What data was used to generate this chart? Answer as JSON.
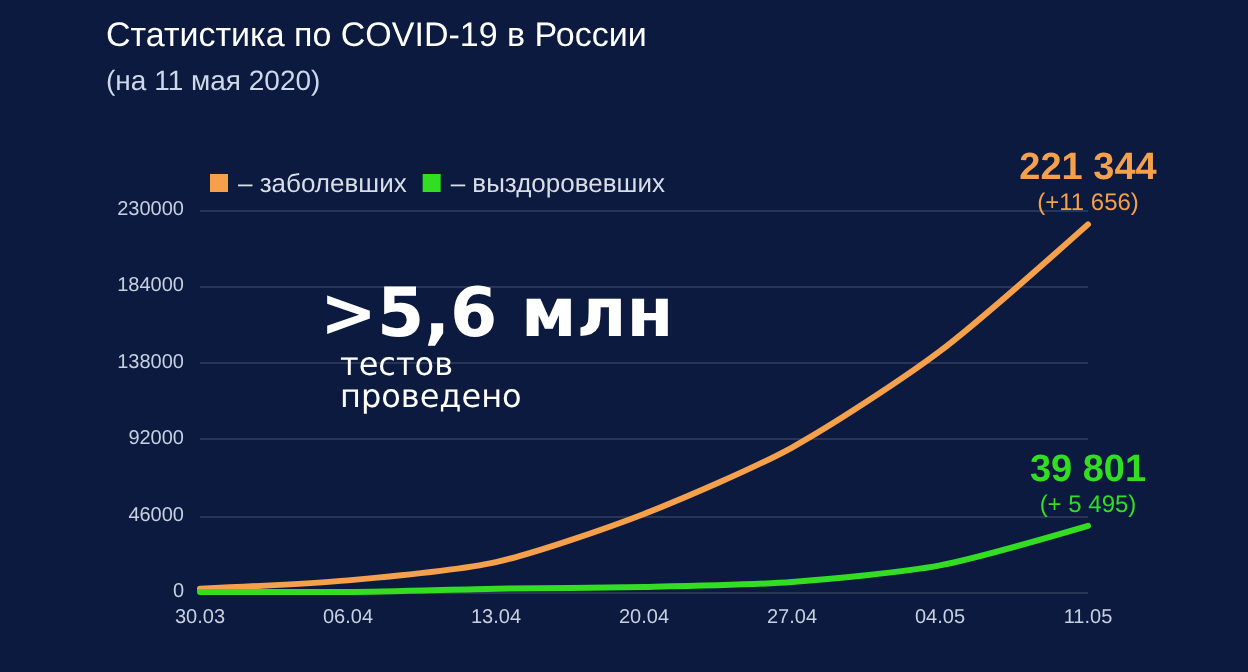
{
  "chart_data": {
    "type": "line",
    "title": "Статистика по COVID-19 в России",
    "subtitle": "(на 11 мая 2020)",
    "categories": [
      "30.03",
      "06.04",
      "13.04",
      "20.04",
      "27.04",
      "04.05",
      "11.05"
    ],
    "series": [
      {
        "name": "– заболевших",
        "color": "#f5a04a",
        "values": [
          2000,
          7000,
          18000,
          47000,
          87000,
          145000,
          221344
        ],
        "value_labels": [
          null,
          null,
          null,
          null,
          null,
          null,
          "221 344"
        ]
      },
      {
        "name": "– выздоровевших",
        "color": "#33dd22",
        "values": [
          0,
          0,
          2000,
          3000,
          6000,
          16000,
          39801
        ],
        "value_labels": [
          null,
          null,
          null,
          null,
          null,
          null,
          "39 801"
        ]
      }
    ],
    "ylim": [
      0,
      230000
    ],
    "yticks": [
      0,
      46000,
      92000,
      138000,
      184000,
      230000
    ],
    "grid": "y",
    "legend": "top left",
    "marker": "none",
    "line_style": "solid",
    "annotations": [
      {
        "text": "(+11 656)",
        "x": "11.05",
        "y": 221344
      },
      {
        "text": "(+ 5 495)",
        "x": "11.05",
        "y": 39801
      },
      ">5,6 млн",
      "тестов проведено"
    ]
  }
}
